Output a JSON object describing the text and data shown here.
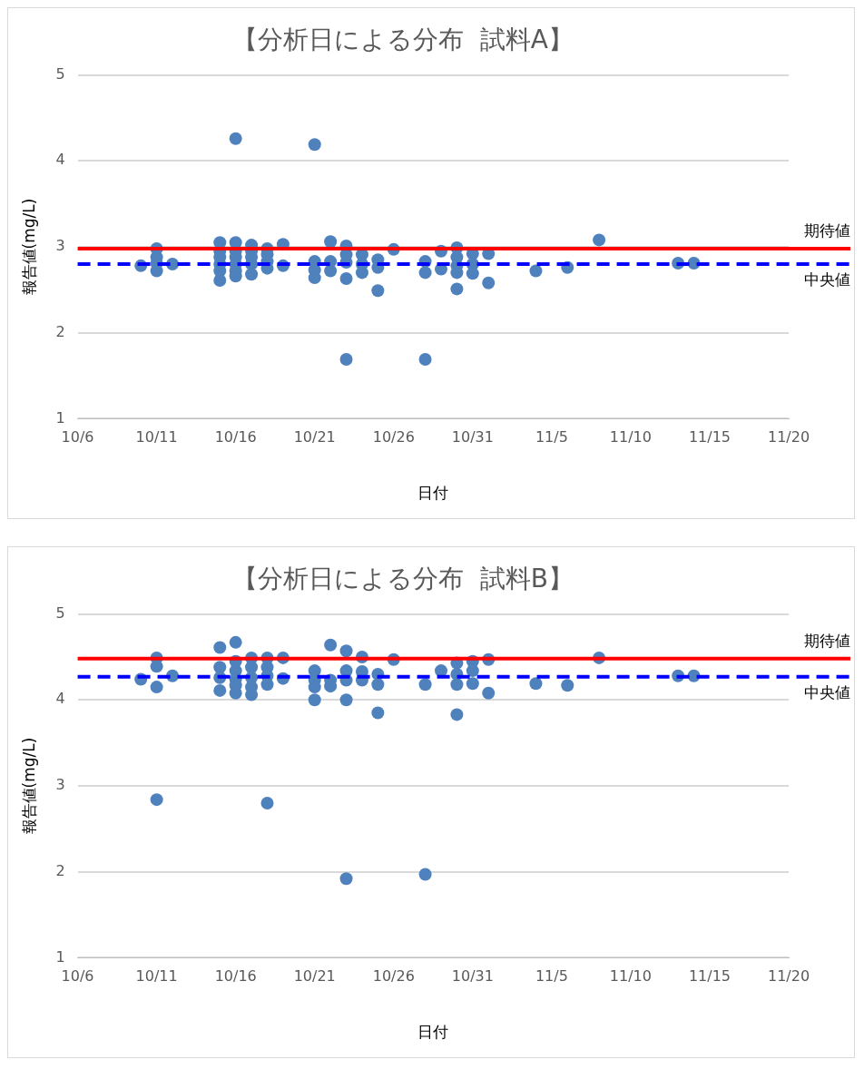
{
  "chart_data": [
    {
      "type": "scatter",
      "title": "【分析日による分布  試料A】",
      "xlabel": "日付",
      "ylabel": "報告値(mg/L)",
      "color": "#4f81bd",
      "marker": "circle",
      "grid": "y",
      "legend": false,
      "x": [
        "--10-10",
        "--10-11",
        "--10-11",
        "--10-11",
        "--10-11",
        "--10-12",
        "--10-15",
        "--10-15",
        "--10-15",
        "--10-15",
        "--10-15",
        "--10-15",
        "--10-16",
        "--10-16",
        "--10-16",
        "--10-16",
        "--10-16",
        "--10-16",
        "--10-16",
        "--10-17",
        "--10-17",
        "--10-17",
        "--10-17",
        "--10-17",
        "--10-18",
        "--10-18",
        "--10-18",
        "--10-18",
        "--10-19",
        "--10-19",
        "--10-21",
        "--10-21",
        "--10-21",
        "--10-21",
        "--10-22",
        "--10-22",
        "--10-22",
        "--10-23",
        "--10-23",
        "--10-23",
        "--10-23",
        "--10-23",
        "--10-24",
        "--10-24",
        "--10-24",
        "--10-25",
        "--10-25",
        "--10-25",
        "--10-26",
        "--10-28",
        "--10-28",
        "--10-28",
        "--10-29",
        "--10-29",
        "--10-30",
        "--10-30",
        "--10-30",
        "--10-30",
        "--10-30",
        "--10-31",
        "--10-31",
        "--10-31",
        "--11-01",
        "--11-01",
        "--11-04",
        "--11-06",
        "--11-08",
        "--11-13",
        "--11-14"
      ],
      "values": [
        2.78,
        2.98,
        2.88,
        2.81,
        2.72,
        2.8,
        3.05,
        2.95,
        2.88,
        2.8,
        2.72,
        2.61,
        4.26,
        3.05,
        2.95,
        2.88,
        2.8,
        2.72,
        2.66,
        3.02,
        2.95,
        2.88,
        2.8,
        2.68,
        2.98,
        2.91,
        2.83,
        2.75,
        3.03,
        2.78,
        4.19,
        2.83,
        2.73,
        2.64,
        3.06,
        2.83,
        2.72,
        3.01,
        2.91,
        2.82,
        2.63,
        1.69,
        2.91,
        2.8,
        2.7,
        2.85,
        2.76,
        2.49,
        2.97,
        2.83,
        2.7,
        1.69,
        2.95,
        2.74,
        2.99,
        2.88,
        2.78,
        2.7,
        2.51,
        2.92,
        2.8,
        2.69,
        2.92,
        2.58,
        2.72,
        2.76,
        3.08,
        2.81,
        2.81
      ],
      "xlim": [
        "--10-06",
        "--11-20"
      ],
      "xticks": [
        {
          "value": "--10-06",
          "label": "10/6"
        },
        {
          "value": "--10-11",
          "label": "10/11"
        },
        {
          "value": "--10-16",
          "label": "10/16"
        },
        {
          "value": "--10-21",
          "label": "10/21"
        },
        {
          "value": "--10-26",
          "label": "10/26"
        },
        {
          "value": "--10-31",
          "label": "10/31"
        },
        {
          "value": "--11-05",
          "label": "11/5"
        },
        {
          "value": "--11-10",
          "label": "11/10"
        },
        {
          "value": "--11-15",
          "label": "11/15"
        },
        {
          "value": "--11-20",
          "label": "11/20"
        }
      ],
      "ylim": [
        1,
        5
      ],
      "yticks": [
        1,
        2,
        3,
        4,
        5
      ],
      "ref_lines": [
        {
          "axis": "y",
          "value": 2.98,
          "label": "期待値",
          "color": "#ff0000",
          "line_style": "solid"
        },
        {
          "axis": "y",
          "value": 2.8,
          "label": "中央値",
          "color": "#0000ff",
          "line_style": "dashed"
        }
      ]
    },
    {
      "type": "scatter",
      "title": "【分析日による分布  試料B】",
      "xlabel": "日付",
      "ylabel": "報告値(mg/L)",
      "color": "#4f81bd",
      "marker": "circle",
      "grid": "y",
      "legend": false,
      "x": [
        "--10-10",
        "--10-11",
        "--10-11",
        "--10-11",
        "--10-11",
        "--10-12",
        "--10-15",
        "--10-15",
        "--10-15",
        "--10-15",
        "--10-16",
        "--10-16",
        "--10-16",
        "--10-16",
        "--10-16",
        "--10-16",
        "--10-17",
        "--10-17",
        "--10-17",
        "--10-17",
        "--10-17",
        "--10-18",
        "--10-18",
        "--10-18",
        "--10-18",
        "--10-18",
        "--10-19",
        "--10-19",
        "--10-21",
        "--10-21",
        "--10-21",
        "--10-21",
        "--10-22",
        "--10-22",
        "--10-22",
        "--10-23",
        "--10-23",
        "--10-23",
        "--10-23",
        "--10-23",
        "--10-24",
        "--10-24",
        "--10-24",
        "--10-25",
        "--10-25",
        "--10-25",
        "--10-26",
        "--10-28",
        "--10-28",
        "--10-29",
        "--10-30",
        "--10-30",
        "--10-30",
        "--10-30",
        "--10-31",
        "--10-31",
        "--10-31",
        "--11-01",
        "--11-01",
        "--11-04",
        "--11-06",
        "--11-08",
        "--11-13",
        "--11-14"
      ],
      "values": [
        4.24,
        4.49,
        4.39,
        4.15,
        2.84,
        4.28,
        4.61,
        4.38,
        4.26,
        4.11,
        4.67,
        4.45,
        4.34,
        4.24,
        4.17,
        4.08,
        4.49,
        4.38,
        4.26,
        4.15,
        4.06,
        4.49,
        4.38,
        4.28,
        4.18,
        2.8,
        4.49,
        4.25,
        4.34,
        4.23,
        4.15,
        4.0,
        4.64,
        4.23,
        4.16,
        4.57,
        4.34,
        4.23,
        4.0,
        1.92,
        4.5,
        4.33,
        4.23,
        4.3,
        4.18,
        3.85,
        4.47,
        4.18,
        1.97,
        4.34,
        4.43,
        4.3,
        4.18,
        3.83,
        4.45,
        4.34,
        4.19,
        4.47,
        4.08,
        4.19,
        4.17,
        4.49,
        4.28,
        4.28
      ],
      "xlim": [
        "--10-06",
        "--11-20"
      ],
      "xticks": [
        {
          "value": "--10-06",
          "label": "10/6"
        },
        {
          "value": "--10-11",
          "label": "10/11"
        },
        {
          "value": "--10-16",
          "label": "10/16"
        },
        {
          "value": "--10-21",
          "label": "10/21"
        },
        {
          "value": "--10-26",
          "label": "10/26"
        },
        {
          "value": "--10-31",
          "label": "10/31"
        },
        {
          "value": "--11-05",
          "label": "11/5"
        },
        {
          "value": "--11-10",
          "label": "11/10"
        },
        {
          "value": "--11-15",
          "label": "11/15"
        },
        {
          "value": "--11-20",
          "label": "11/20"
        }
      ],
      "ylim": [
        1,
        5
      ],
      "yticks": [
        1,
        2,
        3,
        4,
        5
      ],
      "ref_lines": [
        {
          "axis": "y",
          "value": 4.48,
          "label": "期待値",
          "color": "#ff0000",
          "line_style": "solid"
        },
        {
          "axis": "y",
          "value": 4.27,
          "label": "中央値",
          "color": "#0000ff",
          "line_style": "dashed"
        }
      ]
    }
  ]
}
